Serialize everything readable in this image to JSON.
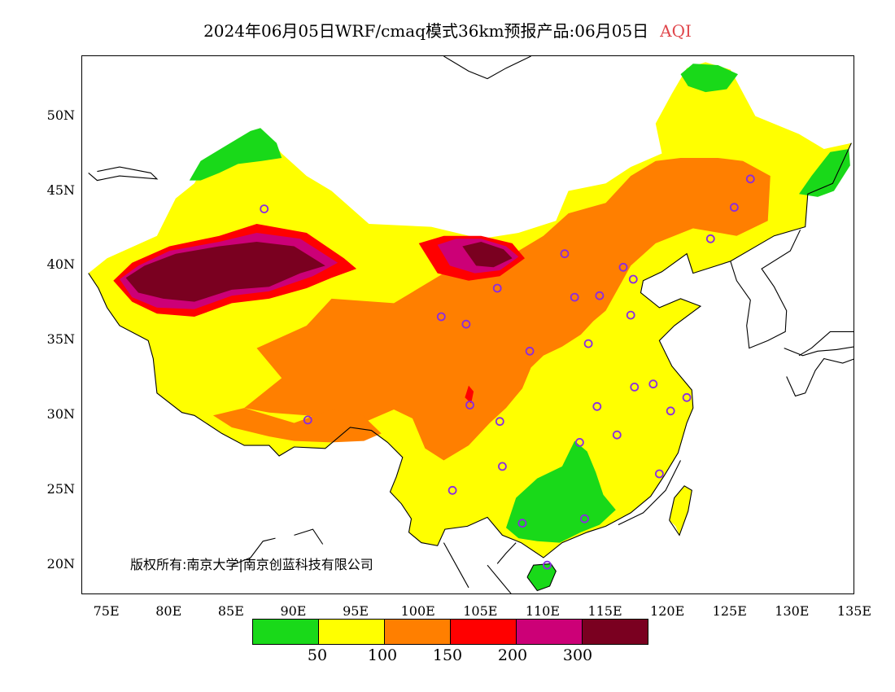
{
  "title": {
    "main": "2024年06月05日WRF/cmaq模式36km预报产品:06月05日",
    "variable": "AQI",
    "variable_color": "#e0474c"
  },
  "y_axis": {
    "ticks": [
      "50N",
      "45N",
      "40N",
      "35N",
      "30N",
      "25N",
      "20N"
    ]
  },
  "x_axis": {
    "ticks": [
      "75E",
      "80E",
      "85E",
      "90E",
      "95E",
      "100E",
      "105E",
      "110E",
      "115E",
      "120E",
      "125E",
      "130E",
      "135E"
    ]
  },
  "copyright": "版权所有:南京大学|南京创蓝科技有限公司",
  "legend": {
    "colors": [
      "#19d919",
      "#ffff00",
      "#ff7f00",
      "#ff0000",
      "#cc0077",
      "#7a0020"
    ],
    "labels": [
      "50",
      "100",
      "150",
      "200",
      "300"
    ]
  },
  "map": {
    "extent": {
      "lon": [
        73,
        135
      ],
      "lat": [
        18,
        54
      ]
    },
    "station_color": "#8a2be2",
    "stations": [
      {
        "lon": 87.6,
        "lat": 43.8
      },
      {
        "lon": 126.6,
        "lat": 45.8
      },
      {
        "lon": 125.3,
        "lat": 43.9
      },
      {
        "lon": 123.4,
        "lat": 41.8
      },
      {
        "lon": 111.7,
        "lat": 40.8
      },
      {
        "lon": 116.4,
        "lat": 39.9
      },
      {
        "lon": 117.2,
        "lat": 39.1
      },
      {
        "lon": 106.3,
        "lat": 38.5
      },
      {
        "lon": 112.5,
        "lat": 37.9
      },
      {
        "lon": 114.5,
        "lat": 38.0
      },
      {
        "lon": 117.0,
        "lat": 36.7
      },
      {
        "lon": 101.8,
        "lat": 36.6
      },
      {
        "lon": 103.8,
        "lat": 36.1
      },
      {
        "lon": 108.9,
        "lat": 34.3
      },
      {
        "lon": 113.6,
        "lat": 34.8
      },
      {
        "lon": 117.3,
        "lat": 31.9
      },
      {
        "lon": 118.8,
        "lat": 32.1
      },
      {
        "lon": 121.5,
        "lat": 31.2
      },
      {
        "lon": 120.2,
        "lat": 30.3
      },
      {
        "lon": 114.3,
        "lat": 30.6
      },
      {
        "lon": 104.1,
        "lat": 30.7
      },
      {
        "lon": 91.1,
        "lat": 29.7
      },
      {
        "lon": 106.5,
        "lat": 29.6
      },
      {
        "lon": 112.9,
        "lat": 28.2
      },
      {
        "lon": 115.9,
        "lat": 28.7
      },
      {
        "lon": 106.7,
        "lat": 26.6
      },
      {
        "lon": 119.3,
        "lat": 26.1
      },
      {
        "lon": 102.7,
        "lat": 25.0
      },
      {
        "lon": 113.3,
        "lat": 23.1
      },
      {
        "lon": 108.3,
        "lat": 22.8
      },
      {
        "lon": 110.3,
        "lat": 20.0
      }
    ]
  }
}
